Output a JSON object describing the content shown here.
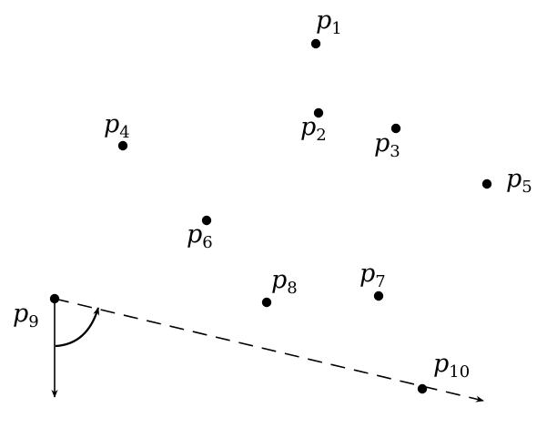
{
  "diagram": {
    "points": [
      {
        "id": "p1",
        "base": "p",
        "sub": "1"
      },
      {
        "id": "p2",
        "base": "p",
        "sub": "2"
      },
      {
        "id": "p3",
        "base": "p",
        "sub": "3"
      },
      {
        "id": "p4",
        "base": "p",
        "sub": "4"
      },
      {
        "id": "p5",
        "base": "p",
        "sub": "5"
      },
      {
        "id": "p6",
        "base": "p",
        "sub": "6"
      },
      {
        "id": "p7",
        "base": "p",
        "sub": "7"
      },
      {
        "id": "p8",
        "base": "p",
        "sub": "8"
      },
      {
        "id": "p9",
        "base": "p",
        "sub": "9"
      },
      {
        "id": "p10",
        "base": "p",
        "sub": "10"
      }
    ],
    "colors": {
      "ink": "#000000",
      "background": "#ffffff"
    }
  }
}
